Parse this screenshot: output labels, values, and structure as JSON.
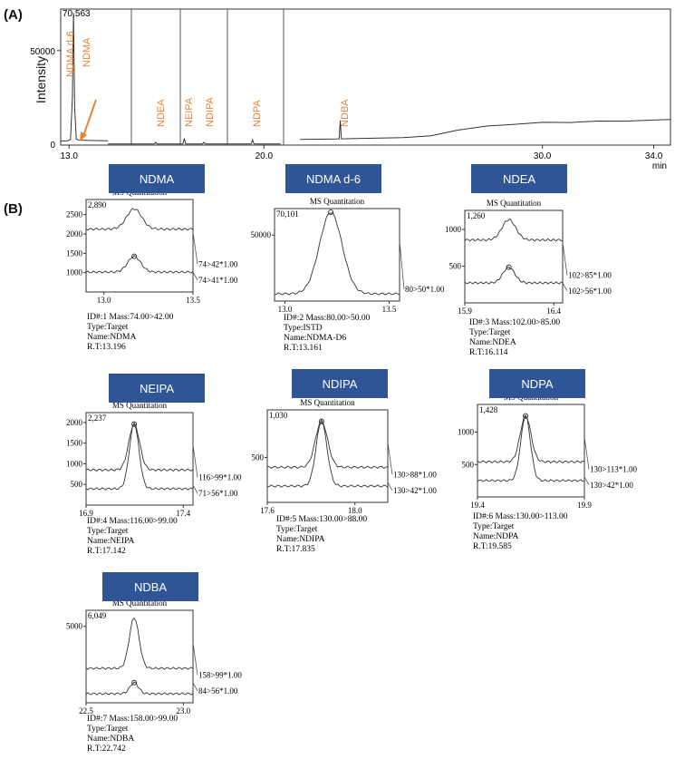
{
  "panel_a": {
    "label": "(A)",
    "ylabel": "Intensity",
    "unit": "min",
    "y_tick": "50000",
    "x_ticks": [
      "13.0",
      "20.0",
      "30.0",
      "34.0"
    ],
    "top_value": "70,563",
    "peak_labels": [
      "NDMA d-6",
      "NDMA",
      "NDEA",
      "NEIPA",
      "NDIPA",
      "NDPA",
      "NDBA"
    ]
  },
  "panel_b": {
    "label": "(B)",
    "box_title": "MS Quantitation"
  },
  "colors": {
    "badge": "#2f5597",
    "peak_label": "#e8823a",
    "trace": "#333333"
  },
  "chart_data": [
    {
      "type": "line",
      "id": "tic",
      "xlabel": "min",
      "ylabel": "Intensity",
      "xlim": [
        12.7,
        34.6
      ],
      "ylim": [
        0,
        72000
      ],
      "x_ticks": [
        13.0,
        20.0,
        30.0,
        34.0
      ],
      "y_ticks": [
        50000
      ],
      "annotations": [
        {
          "text": "NDMA d-6",
          "x": 13.16
        },
        {
          "text": "NDMA",
          "x": 13.2
        },
        {
          "text": "NDEA",
          "x": 16.11
        },
        {
          "text": "NEIPA",
          "x": 17.14
        },
        {
          "text": "NDIPA",
          "x": 17.84
        },
        {
          "text": "NDPA",
          "x": 19.59
        },
        {
          "text": "NDBA",
          "x": 22.74
        }
      ],
      "baseline": [
        [
          21.3,
          3500
        ],
        [
          25.0,
          4000
        ],
        [
          26.5,
          6500
        ],
        [
          28.0,
          10000
        ],
        [
          30.0,
          12000
        ],
        [
          32.0,
          12500
        ],
        [
          34.6,
          13500
        ]
      ]
    },
    {
      "type": "line",
      "id": "ndma",
      "badge": "NDMA",
      "top_value": "2,890",
      "y_ticks": [
        1000,
        1500,
        2000,
        2500
      ],
      "ylim": [
        500,
        2890
      ],
      "x_ticks": [
        "13.0",
        "13.5"
      ],
      "xlim": [
        12.9,
        13.5
      ],
      "channels": [
        "74>42*1.00",
        "74>41*1.00"
      ],
      "info": {
        "id": "ID#:1",
        "mass": "Mass:74.00>42.00",
        "type": "Type:Target",
        "name": "Name:NDMA",
        "rt": "R.T:13.196"
      }
    },
    {
      "type": "line",
      "id": "ndmad6",
      "badge": "NDMA d-6",
      "top_value": "70,101",
      "y_ticks": [
        50000
      ],
      "ylim": [
        0,
        70101
      ],
      "x_ticks": [
        "13.0",
        "13.5"
      ],
      "xlim": [
        12.95,
        13.55
      ],
      "channels": [
        "80>50*1.00"
      ],
      "info": {
        "id": "ID#:2",
        "mass": "Mass:80.00>50.00",
        "type": "Type:ISTD",
        "name": "Name:NDMA-D6",
        "rt": "R.T:13.161"
      }
    },
    {
      "type": "line",
      "id": "ndea",
      "badge": "NDEA",
      "top_value": "1,260",
      "y_ticks": [
        500,
        1000
      ],
      "ylim": [
        0,
        1260
      ],
      "x_ticks": [
        "15.9",
        "16.4"
      ],
      "xlim": [
        15.9,
        16.45
      ],
      "channels": [
        "102>85*1.00",
        "102>56*1.00"
      ],
      "info": {
        "id": "ID#:3",
        "mass": "Mass:102.00>85.00",
        "type": "Type:Target",
        "name": "Name:NDEA",
        "rt": "R.T:16.114"
      }
    },
    {
      "type": "line",
      "id": "neipa",
      "badge": "NEIPA",
      "top_value": "2,237",
      "y_ticks": [
        500,
        1000,
        1500,
        2000
      ],
      "ylim": [
        0,
        2237
      ],
      "x_ticks": [
        "16.9",
        "17.4"
      ],
      "xlim": [
        16.9,
        17.45
      ],
      "channels": [
        "116>99*1.00",
        "71>56*1.00"
      ],
      "info": {
        "id": "ID#:4",
        "mass": "Mass:116.00>99.00",
        "type": "Type:Target",
        "name": "Name:NEIPA",
        "rt": "R.T:17.142"
      }
    },
    {
      "type": "line",
      "id": "ndipa",
      "badge": "NDIPA",
      "top_value": "1,030",
      "y_ticks": [
        500,
        1000
      ],
      "ylim": [
        0,
        1030
      ],
      "x_ticks": [
        "17.6",
        "18.0"
      ],
      "xlim": [
        17.6,
        18.15
      ],
      "channels": [
        "130>88*1.00",
        "130>42*1.00"
      ],
      "info": {
        "id": "ID#:5",
        "mass": "Mass:130.00>88.00",
        "type": "Type:Target",
        "name": "Name:NDIPA",
        "rt": "R.T:17.835"
      }
    },
    {
      "type": "line",
      "id": "ndpa",
      "badge": "NDPA",
      "top_value": "1,428",
      "y_ticks": [
        500,
        1000
      ],
      "ylim": [
        0,
        1428
      ],
      "x_ticks": [
        "19.4",
        "19.9"
      ],
      "xlim": [
        19.4,
        19.9
      ],
      "channels": [
        "130>113*1.00",
        "130>42*1.00"
      ],
      "info": {
        "id": "ID#:6",
        "mass": "Mass:130.00>113.00",
        "type": "Type:Target",
        "name": "Name:NDPA",
        "rt": "R.T:19.585"
      }
    },
    {
      "type": "line",
      "id": "ndba",
      "badge": "NDBA",
      "top_value": "6,049",
      "y_ticks": [
        5000
      ],
      "ylim": [
        0,
        6049
      ],
      "x_ticks": [
        "22.5",
        "23.0"
      ],
      "xlim": [
        22.5,
        23.05
      ],
      "channels": [
        "158>99*1.00",
        "84>56*1.00"
      ],
      "info": {
        "id": "ID#:7",
        "mass": "Mass:158.00>99.00",
        "type": "Type:Target",
        "name": "Name:NDBA",
        "rt": "R.T:22.742"
      }
    }
  ]
}
